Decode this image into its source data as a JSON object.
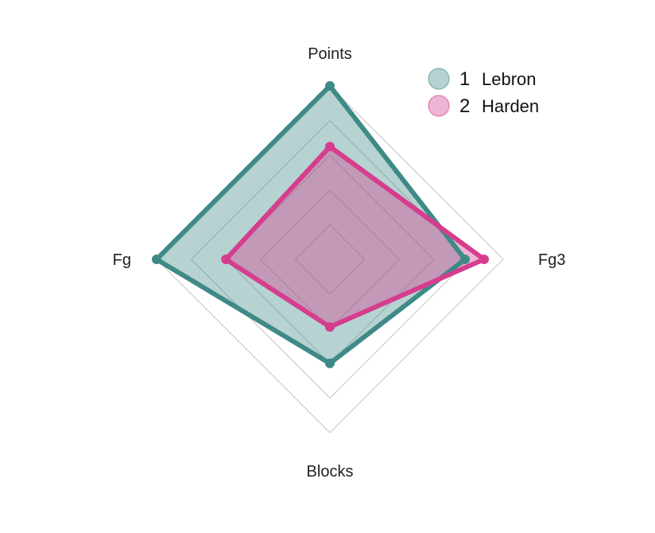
{
  "chart_data": {
    "type": "radar",
    "axes": [
      "Points",
      "Fg3",
      "Blocks",
      "Fg"
    ],
    "rmax": 1,
    "rings": 5,
    "grid": true,
    "legend_position": "top-right",
    "series": [
      {
        "id": "1",
        "name": "Lebron",
        "color": "#3f8a86",
        "values": [
          1.0,
          0.78,
          0.6,
          1.0
        ]
      },
      {
        "id": "2",
        "name": "Harden",
        "color": "#d63d8e",
        "values": [
          0.65,
          0.89,
          0.39,
          0.6
        ]
      }
    ]
  }
}
